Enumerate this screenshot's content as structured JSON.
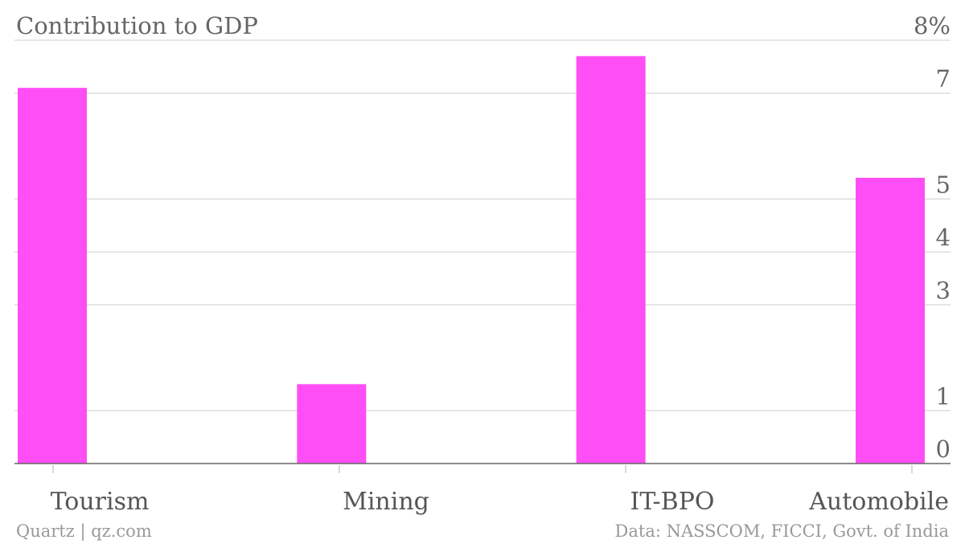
{
  "chart_data": {
    "type": "bar",
    "title": "Contribution to GDP",
    "categories": [
      "Tourism",
      "Mining",
      "IT-BPO",
      "Automobile"
    ],
    "values": [
      7.1,
      1.5,
      7.7,
      5.4
    ],
    "ylim": [
      0,
      8
    ],
    "y_ticks": [
      0,
      1,
      3,
      4,
      5,
      7,
      8
    ],
    "y_tick_labels": [
      "0",
      "1",
      "3",
      "4",
      "5",
      "7",
      "8%"
    ],
    "grid": true,
    "bar_color": "#ff4ef5"
  },
  "footer": {
    "source_left": "Quartz | qz.com",
    "source_right": "Data: NASSCOM, FICCI, Govt. of India"
  }
}
